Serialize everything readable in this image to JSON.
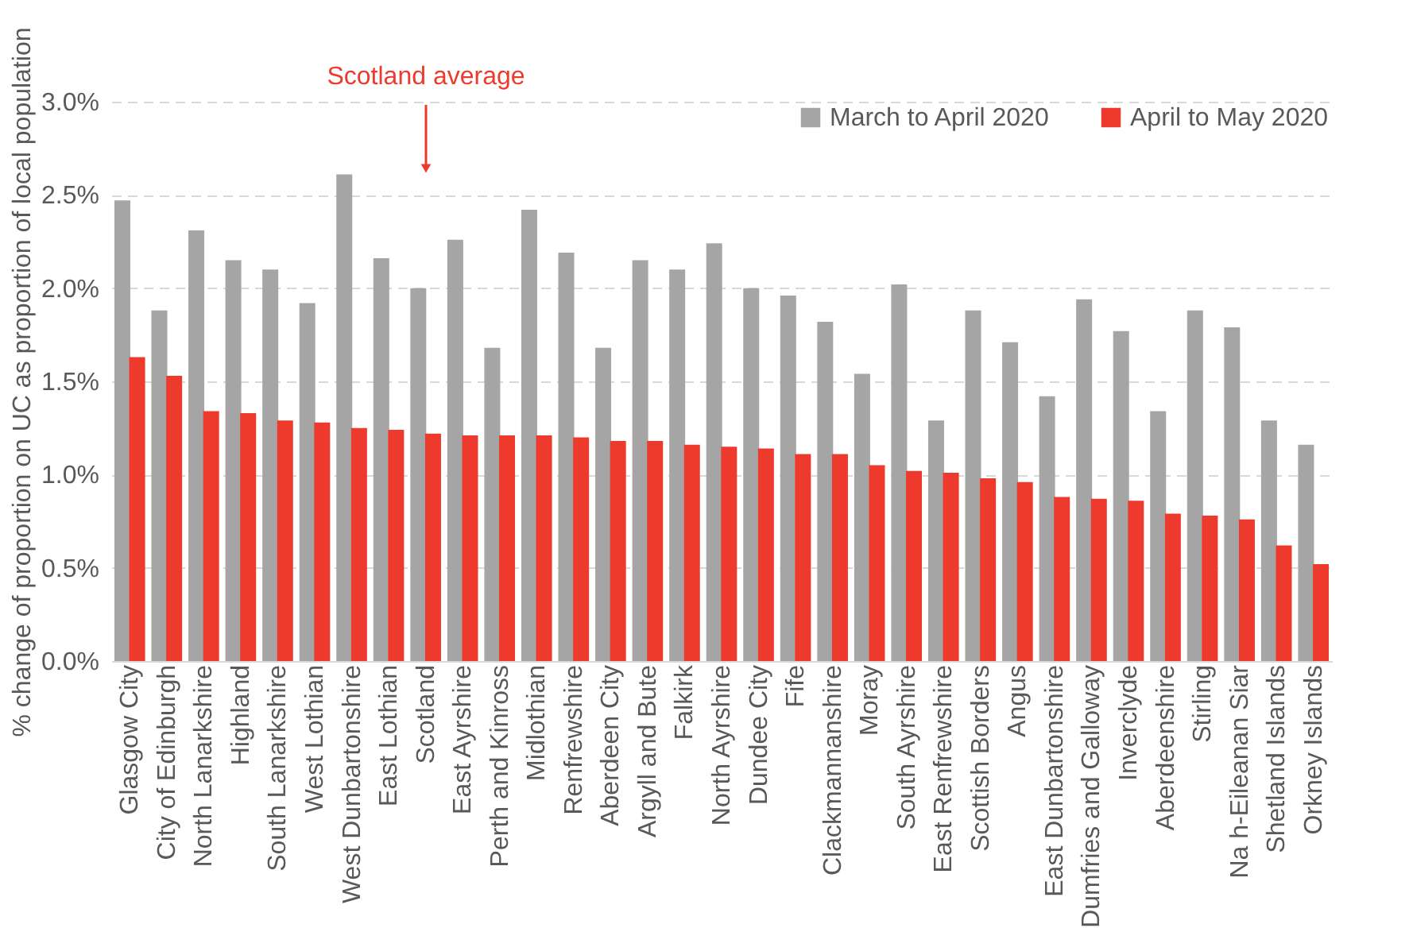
{
  "chart_data": {
    "type": "bar",
    "ylabel": "% change of proportion on UC as proportion of local population",
    "categories": [
      "Glasgow City",
      "City of Edinburgh",
      "North Lanarkshire",
      "Highland",
      "South Lanarkshire",
      "West Lothian",
      "West Dunbartonshire",
      "East Lothian",
      "Scotland",
      "East Ayrshire",
      "Perth and Kinross",
      "Midlothian",
      "Renfrewshire",
      "Aberdeen City",
      "Argyll and Bute",
      "Falkirk",
      "North Ayrshire",
      "Dundee City",
      "Fife",
      "Clackmannanshire",
      "Moray",
      "South Ayrshire",
      "East Renfrewshire",
      "Scottish Borders",
      "Angus",
      "East Dunbartonshire",
      "Dumfries and Galloway",
      "Inverclyde",
      "Aberdeenshire",
      "Stirling",
      "Na h-Eileanan Siar",
      "Shetland Islands",
      "Orkney Islands"
    ],
    "series": [
      {
        "name": "March to April 2020",
        "color": "#a5a5a5",
        "values": [
          2.47,
          1.88,
          2.31,
          2.15,
          2.1,
          1.92,
          2.61,
          2.16,
          2.0,
          2.26,
          1.68,
          2.42,
          2.19,
          1.68,
          2.15,
          2.1,
          2.24,
          2.0,
          1.96,
          1.82,
          1.54,
          2.02,
          1.29,
          1.88,
          1.71,
          1.42,
          1.94,
          1.77,
          1.34,
          1.88,
          1.79,
          1.29,
          1.16
        ]
      },
      {
        "name": "April to May 2020",
        "color": "#ee3a2c",
        "values": [
          1.63,
          1.53,
          1.34,
          1.33,
          1.29,
          1.28,
          1.25,
          1.24,
          1.22,
          1.21,
          1.21,
          1.21,
          1.2,
          1.18,
          1.18,
          1.16,
          1.15,
          1.14,
          1.11,
          1.11,
          1.05,
          1.02,
          1.01,
          0.98,
          0.96,
          0.88,
          0.87,
          0.86,
          0.79,
          0.78,
          0.76,
          0.62,
          0.52
        ]
      }
    ],
    "ylim": [
      0,
      3.0
    ],
    "yticks": [
      {
        "value": 0,
        "label": "0.0%"
      },
      {
        "value": 0.5,
        "label": "0.5%"
      },
      {
        "value": 1.0,
        "label": "1.0%"
      },
      {
        "value": 1.5,
        "label": "1.5%"
      },
      {
        "value": 2.0,
        "label": "2.0%"
      },
      {
        "value": 2.5,
        "label": "2.5%"
      },
      {
        "value": 3.0,
        "label": "3.0%"
      }
    ],
    "annotations": [
      "Scotland average"
    ],
    "grid": "y",
    "legend": "top right"
  }
}
